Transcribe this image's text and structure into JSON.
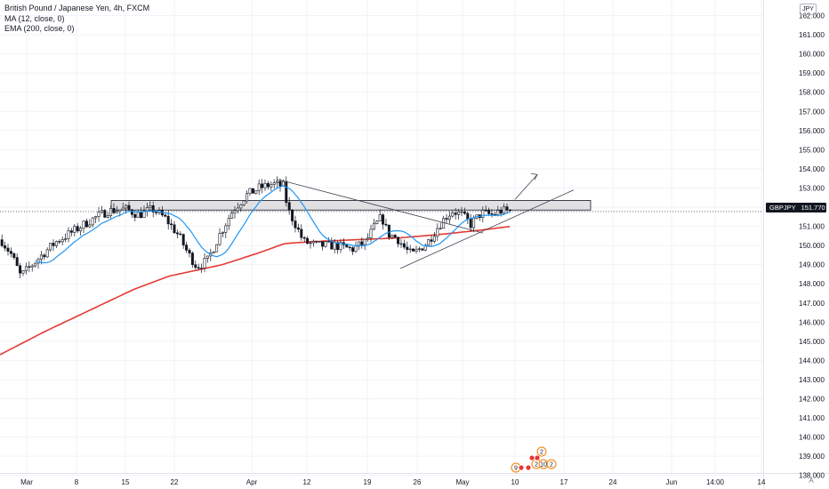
{
  "legend": {
    "symbol_line": "British Pound / Japanese Yen, 4h, FXCM",
    "ma_line": "MA (12, close, 0)",
    "ema_line": "EMA (200, close, 0)"
  },
  "currency_label": "JPY",
  "price_tag": {
    "symbol": "GBPJPY",
    "value": "151.770"
  },
  "auto_button": "A",
  "colors": {
    "up": "#ffffff",
    "down": "#131722",
    "ma": "#2196f3",
    "ema": "#e53935",
    "zone_fill": "#d9dadc",
    "grid": "#f0f3fa",
    "trendline": "#434651"
  },
  "chart_data": {
    "type": "candlestick",
    "title": "British Pound / Japanese Yen, 4h, FXCM",
    "ylim": [
      137.6,
      162.6
    ],
    "y_ticks": [
      "162.000",
      "161.000",
      "160.000",
      "159.000",
      "158.000",
      "157.000",
      "156.000",
      "155.000",
      "154.000",
      "153.000",
      "152.000",
      "151.000",
      "150.000",
      "149.000",
      "148.000",
      "147.000",
      "146.000",
      "145.000",
      "144.000",
      "143.000",
      "142.000",
      "141.000",
      "140.000",
      "139.000",
      "138.000"
    ],
    "x_ticks": [
      "Mar",
      "8",
      "15",
      "22",
      "Apr",
      "12",
      "19",
      "26",
      "May",
      "10",
      "17",
      "24",
      "Jun",
      "14:00",
      "14"
    ],
    "last_price": 151.77,
    "close_path": [
      [
        0,
        150.3
      ],
      [
        12,
        149.5
      ],
      [
        22,
        148.4
      ],
      [
        35,
        149.0
      ],
      [
        48,
        149.6
      ],
      [
        62,
        150.2
      ],
      [
        80,
        150.7
      ],
      [
        100,
        151.3
      ],
      [
        120,
        151.8
      ],
      [
        140,
        151.9
      ],
      [
        155,
        151.6
      ],
      [
        170,
        151.9
      ],
      [
        185,
        151.4
      ],
      [
        200,
        150.5
      ],
      [
        210,
        149.6
      ],
      [
        220,
        148.9
      ],
      [
        232,
        149.2
      ],
      [
        245,
        150.5
      ],
      [
        260,
        151.8
      ],
      [
        275,
        152.6
      ],
      [
        290,
        153.0
      ],
      [
        305,
        153.2
      ],
      [
        318,
        153.1
      ],
      [
        322,
        151.9
      ],
      [
        330,
        151.2
      ],
      [
        340,
        150.2
      ],
      [
        355,
        150.0
      ],
      [
        375,
        150.0
      ],
      [
        395,
        149.8
      ],
      [
        410,
        150.2
      ],
      [
        420,
        151.0
      ],
      [
        428,
        151.5
      ],
      [
        435,
        150.6
      ],
      [
        445,
        150.4
      ],
      [
        455,
        149.8
      ],
      [
        462,
        149.5
      ],
      [
        470,
        149.8
      ],
      [
        480,
        150.2
      ],
      [
        490,
        150.9
      ],
      [
        500,
        151.5
      ],
      [
        508,
        151.8
      ],
      [
        518,
        151.6
      ],
      [
        528,
        151.1
      ],
      [
        540,
        151.7
      ],
      [
        552,
        151.6
      ],
      [
        562,
        151.8
      ],
      [
        572,
        151.8
      ]
    ],
    "ema_path": [
      [
        0,
        144.3
      ],
      [
        50,
        145.5
      ],
      [
        100,
        146.6
      ],
      [
        150,
        147.7
      ],
      [
        190,
        148.4
      ],
      [
        220,
        148.7
      ],
      [
        250,
        149.0
      ],
      [
        290,
        149.6
      ],
      [
        320,
        150.1
      ],
      [
        350,
        150.2
      ],
      [
        400,
        150.3
      ],
      [
        450,
        150.4
      ],
      [
        500,
        150.6
      ],
      [
        540,
        150.8
      ],
      [
        575,
        151.0
      ]
    ],
    "resistance_zone": {
      "from_x": 125,
      "to_x": 664,
      "top": 152.35,
      "bottom": 151.85
    },
    "trendlines": [
      {
        "name": "descending",
        "from": [
          312,
          153.45
        ],
        "to": [
          543,
          150.65
        ]
      },
      {
        "name": "ascending",
        "from": [
          450,
          148.8
        ],
        "to": [
          645,
          152.9
        ]
      },
      {
        "name": "projection-arrow",
        "from": [
          579,
          152.4
        ],
        "to": [
          604,
          153.7
        ]
      }
    ],
    "event_markers": [
      "2",
      "2",
      "9",
      "10",
      "2"
    ],
    "grid": true
  }
}
